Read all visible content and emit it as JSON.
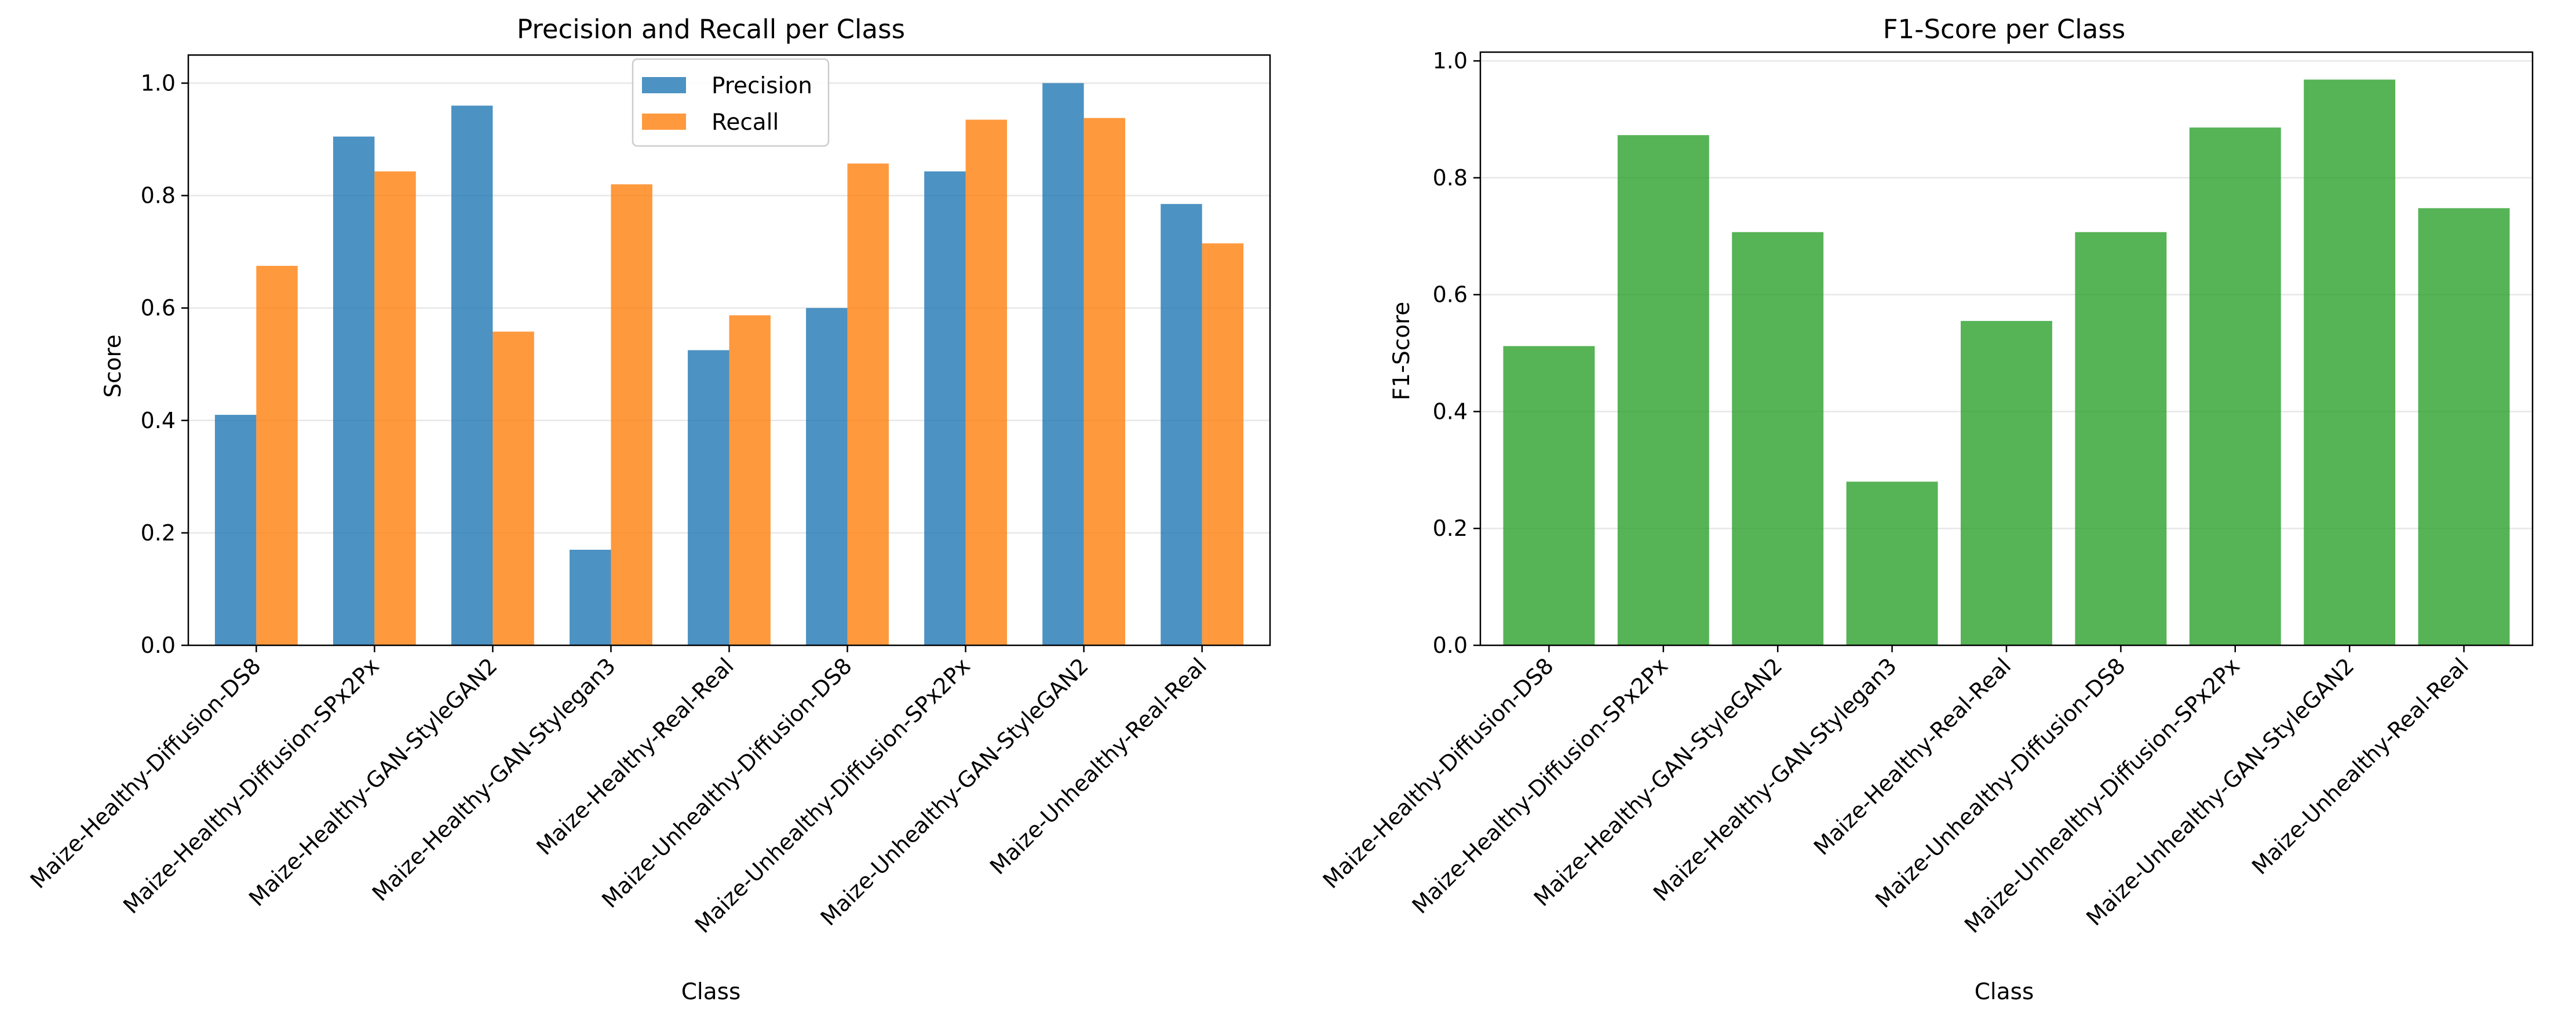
{
  "chart_data": [
    {
      "type": "bar",
      "title": "Precision and Recall per Class",
      "xlabel": "Class",
      "ylabel": "Score",
      "ylim": [
        0,
        1.05
      ],
      "yticks": [
        "0.0",
        "0.2",
        "0.4",
        "0.6",
        "0.8",
        "1.0"
      ],
      "grid": "y",
      "legend": "top-center",
      "categories": [
        "Maize-Healthy-Diffusion-DS8",
        "Maize-Healthy-Diffusion-SPx2Px",
        "Maize-Healthy-GAN-StyleGAN2",
        "Maize-Healthy-GAN-Stylegan3",
        "Maize-Healthy-Real-Real",
        "Maize-Unhealthy-Diffusion-DS8",
        "Maize-Unhealthy-Diffusion-SPx2Px",
        "Maize-Unhealthy-GAN-StyleGAN2",
        "Maize-Unhealthy-Real-Real"
      ],
      "series": [
        {
          "name": "Precision",
          "color": "#1f77b4",
          "values": [
            0.41,
            0.905,
            0.96,
            0.17,
            0.525,
            0.6,
            0.843,
            1.0,
            0.785
          ]
        },
        {
          "name": "Recall",
          "color": "#ff7f0e",
          "values": [
            0.675,
            0.843,
            0.558,
            0.82,
            0.587,
            0.857,
            0.935,
            0.938,
            0.715
          ]
        }
      ]
    },
    {
      "type": "bar",
      "title": "F1-Score per Class",
      "xlabel": "Class",
      "ylabel": "F1-Score",
      "ylim": [
        0,
        1.015
      ],
      "yticks": [
        "0.0",
        "0.2",
        "0.4",
        "0.6",
        "0.8",
        "1.0"
      ],
      "grid": "y",
      "categories": [
        "Maize-Healthy-Diffusion-DS8",
        "Maize-Healthy-Diffusion-SPx2Px",
        "Maize-Healthy-GAN-StyleGAN2",
        "Maize-Healthy-GAN-Stylegan3",
        "Maize-Healthy-Real-Real",
        "Maize-Unhealthy-Diffusion-DS8",
        "Maize-Unhealthy-Diffusion-SPx2Px",
        "Maize-Unhealthy-GAN-StyleGAN2",
        "Maize-Unhealthy-Real-Real"
      ],
      "series": [
        {
          "color": "#2ca02c",
          "values": [
            0.512,
            0.873,
            0.707,
            0.28,
            0.555,
            0.707,
            0.886,
            0.968,
            0.748
          ]
        }
      ]
    }
  ]
}
